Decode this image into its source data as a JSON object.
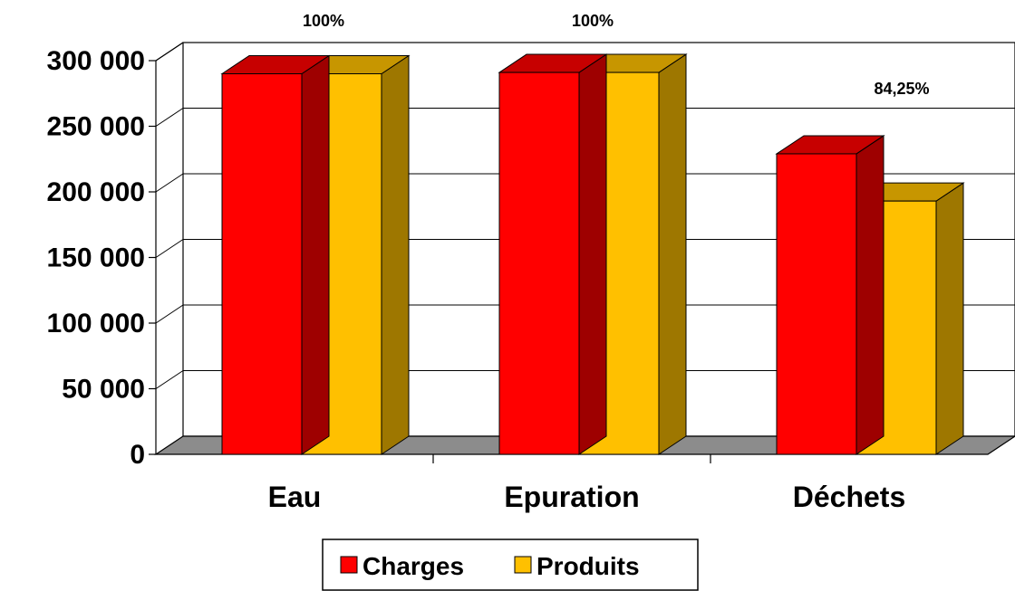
{
  "chart_data": {
    "type": "bar",
    "title": "",
    "xlabel": "",
    "ylabel": "",
    "categories": [
      "Eau",
      "Epuration",
      "Déchets"
    ],
    "series": [
      {
        "name": "Charges",
        "color": "#ff0000",
        "values": [
          290000,
          291000,
          229000
        ]
      },
      {
        "name": "Produits",
        "color": "#ffc000",
        "values": [
          290000,
          291000,
          193000
        ]
      }
    ],
    "ylim": [
      0,
      300000
    ],
    "yticks": [
      {
        "value": 0,
        "label": "0"
      },
      {
        "value": 50000,
        "label": "50 000"
      },
      {
        "value": 100000,
        "label": "100 000"
      },
      {
        "value": 150000,
        "label": "150 000"
      },
      {
        "value": 200000,
        "label": "200 000"
      },
      {
        "value": 250000,
        "label": "250 000"
      },
      {
        "value": 300000,
        "label": "300 000"
      }
    ],
    "annotations": [
      "100%",
      "100%",
      "84,25%"
    ],
    "grid": true,
    "legend_position": "bottom",
    "three_d": true
  }
}
